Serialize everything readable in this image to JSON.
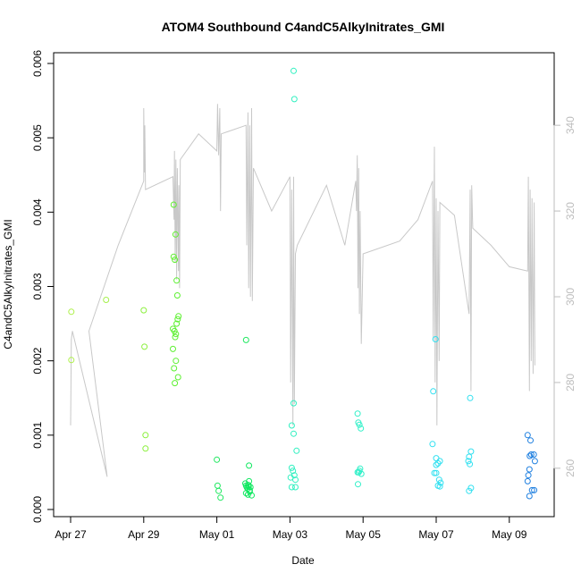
{
  "chart_data": {
    "type": "scatter",
    "title": "ATOM4 Southbound C4andC5AlkyInitrates_GMI",
    "xlabel": "Date",
    "ylabel": "C4andC5AlkyInitrates_GMI",
    "x_range_days": [
      -0.5,
      13.5
    ],
    "ylim": [
      0,
      0.006
    ],
    "y_ticks": [
      0,
      0.001,
      0.002,
      0.003,
      0.004,
      0.005,
      0.006
    ],
    "y_tick_labels": [
      "0.000",
      "0.001",
      "0.002",
      "0.003",
      "0.004",
      "0.005",
      "0.006"
    ],
    "x_ticks": [
      {
        "day": 0,
        "label": "Apr 27"
      },
      {
        "day": 2,
        "label": "Apr 29"
      },
      {
        "day": 4,
        "label": "May 01"
      },
      {
        "day": 6,
        "label": "May 03"
      },
      {
        "day": 8,
        "label": "May 05"
      },
      {
        "day": 10,
        "label": "May 07"
      },
      {
        "day": 12,
        "label": "May 09"
      }
    ],
    "y2lim": [
      251,
      349
    ],
    "y2_ticks": [
      260,
      280,
      300,
      320,
      340
    ],
    "grid": false,
    "points": [
      {
        "day": 0.02,
        "y": 0.00266,
        "color": "#aef04a"
      },
      {
        "day": 0.02,
        "y": 0.00201,
        "color": "#aef04a"
      },
      {
        "day": 0.97,
        "y": 0.00282,
        "color": "#a6f04c"
      },
      {
        "day": 2.0,
        "y": 0.00268,
        "color": "#8cf03e"
      },
      {
        "day": 2.02,
        "y": 0.00219,
        "color": "#8cf03e"
      },
      {
        "day": 2.05,
        "y": 0.001,
        "color": "#88f038"
      },
      {
        "day": 2.05,
        "y": 0.00082,
        "color": "#88f038"
      },
      {
        "day": 2.82,
        "y": 0.0041,
        "color": "#60f030"
      },
      {
        "day": 2.87,
        "y": 0.0037,
        "color": "#60f030"
      },
      {
        "day": 2.82,
        "y": 0.0034,
        "color": "#60f030"
      },
      {
        "day": 2.85,
        "y": 0.00336,
        "color": "#60f030"
      },
      {
        "day": 2.9,
        "y": 0.00308,
        "color": "#5cf030"
      },
      {
        "day": 2.92,
        "y": 0.00288,
        "color": "#5cf030"
      },
      {
        "day": 2.95,
        "y": 0.0026,
        "color": "#5cf030"
      },
      {
        "day": 2.93,
        "y": 0.00256,
        "color": "#5cf030"
      },
      {
        "day": 2.9,
        "y": 0.0025,
        "color": "#5cf030"
      },
      {
        "day": 2.8,
        "y": 0.00243,
        "color": "#5cf030"
      },
      {
        "day": 2.84,
        "y": 0.0024,
        "color": "#5cf030"
      },
      {
        "day": 2.88,
        "y": 0.00236,
        "color": "#5cf030"
      },
      {
        "day": 2.86,
        "y": 0.00232,
        "color": "#5cf030"
      },
      {
        "day": 2.8,
        "y": 0.00216,
        "color": "#5cf030"
      },
      {
        "day": 2.88,
        "y": 0.002,
        "color": "#5cf030"
      },
      {
        "day": 2.83,
        "y": 0.0019,
        "color": "#5cf030"
      },
      {
        "day": 2.94,
        "y": 0.00178,
        "color": "#5cf030"
      },
      {
        "day": 2.85,
        "y": 0.0017,
        "color": "#5cf030"
      },
      {
        "day": 4.0,
        "y": 0.00067,
        "color": "#20e860"
      },
      {
        "day": 4.02,
        "y": 0.00032,
        "color": "#20e860"
      },
      {
        "day": 4.05,
        "y": 0.00025,
        "color": "#20e860"
      },
      {
        "day": 4.1,
        "y": 0.00016,
        "color": "#20e860"
      },
      {
        "day": 4.8,
        "y": 0.00228,
        "color": "#20e860"
      },
      {
        "day": 4.88,
        "y": 0.00059,
        "color": "#10e860"
      },
      {
        "day": 4.78,
        "y": 0.00035,
        "color": "#10e860"
      },
      {
        "day": 4.8,
        "y": 0.00032,
        "color": "#10e860"
      },
      {
        "day": 4.82,
        "y": 0.0003,
        "color": "#10e860"
      },
      {
        "day": 4.84,
        "y": 0.00028,
        "color": "#10e860"
      },
      {
        "day": 4.86,
        "y": 0.00033,
        "color": "#10e860"
      },
      {
        "day": 4.88,
        "y": 0.00038,
        "color": "#10e860"
      },
      {
        "day": 4.9,
        "y": 0.00026,
        "color": "#10e860"
      },
      {
        "day": 4.92,
        "y": 0.0003,
        "color": "#10e860"
      },
      {
        "day": 4.8,
        "y": 0.00022,
        "color": "#10e860"
      },
      {
        "day": 4.85,
        "y": 0.0002,
        "color": "#10e860"
      },
      {
        "day": 4.95,
        "y": 0.00019,
        "color": "#10e860"
      },
      {
        "day": 4.9,
        "y": 0.00024,
        "color": "#10e860"
      },
      {
        "day": 4.87,
        "y": 0.00031,
        "color": "#10e860"
      },
      {
        "day": 6.1,
        "y": 0.0059,
        "color": "#30f0c0"
      },
      {
        "day": 6.12,
        "y": 0.00552,
        "color": "#30f0c0"
      },
      {
        "day": 6.1,
        "y": 0.00143,
        "color": "#30f0c0"
      },
      {
        "day": 6.05,
        "y": 0.00113,
        "color": "#30f0c0"
      },
      {
        "day": 6.1,
        "y": 0.00102,
        "color": "#30f0c0"
      },
      {
        "day": 6.18,
        "y": 0.00079,
        "color": "#30f0c0"
      },
      {
        "day": 6.05,
        "y": 0.00056,
        "color": "#30f0c0"
      },
      {
        "day": 6.08,
        "y": 0.00052,
        "color": "#30f0c0"
      },
      {
        "day": 6.12,
        "y": 0.00046,
        "color": "#30f0c0"
      },
      {
        "day": 6.02,
        "y": 0.00043,
        "color": "#30f0c0"
      },
      {
        "day": 6.15,
        "y": 0.0004,
        "color": "#30f0c0"
      },
      {
        "day": 6.05,
        "y": 0.0003,
        "color": "#30f0c0"
      },
      {
        "day": 6.15,
        "y": 0.0003,
        "color": "#30f0c0"
      },
      {
        "day": 7.85,
        "y": 0.00129,
        "color": "#30f0c8"
      },
      {
        "day": 7.87,
        "y": 0.00117,
        "color": "#30f0c8"
      },
      {
        "day": 7.9,
        "y": 0.00114,
        "color": "#30f0c8"
      },
      {
        "day": 7.94,
        "y": 0.00109,
        "color": "#30f0c8"
      },
      {
        "day": 7.92,
        "y": 0.00055,
        "color": "#30f0c8"
      },
      {
        "day": 7.85,
        "y": 0.0005,
        "color": "#30f0c8"
      },
      {
        "day": 7.88,
        "y": 0.0005,
        "color": "#30f0c8"
      },
      {
        "day": 7.95,
        "y": 0.00048,
        "color": "#30f0c8"
      },
      {
        "day": 7.9,
        "y": 0.00052,
        "color": "#30f0c8"
      },
      {
        "day": 7.86,
        "y": 0.00034,
        "color": "#30f0c8"
      },
      {
        "day": 9.98,
        "y": 0.00229,
        "color": "#30e0f0"
      },
      {
        "day": 9.92,
        "y": 0.00159,
        "color": "#30e0f0"
      },
      {
        "day": 9.9,
        "y": 0.00088,
        "color": "#30e0f0"
      },
      {
        "day": 10.0,
        "y": 0.00069,
        "color": "#30e0f0"
      },
      {
        "day": 10.05,
        "y": 0.00062,
        "color": "#30e0f0"
      },
      {
        "day": 10.1,
        "y": 0.00065,
        "color": "#30e0f0"
      },
      {
        "day": 10.0,
        "y": 0.0006,
        "color": "#30e0f0"
      },
      {
        "day": 9.95,
        "y": 0.00049,
        "color": "#30e0f0"
      },
      {
        "day": 10.08,
        "y": 0.0004,
        "color": "#30e0f0"
      },
      {
        "day": 10.12,
        "y": 0.00036,
        "color": "#30e0f0"
      },
      {
        "day": 10.05,
        "y": 0.00032,
        "color": "#30e0f0"
      },
      {
        "day": 10.1,
        "y": 0.00031,
        "color": "#30e0f0"
      },
      {
        "day": 10.0,
        "y": 0.00049,
        "color": "#30e0f0"
      },
      {
        "day": 10.93,
        "y": 0.0015,
        "color": "#30e0f0"
      },
      {
        "day": 10.95,
        "y": 0.00078,
        "color": "#30e0f0"
      },
      {
        "day": 10.9,
        "y": 0.00071,
        "color": "#30e0f0"
      },
      {
        "day": 10.88,
        "y": 0.00065,
        "color": "#30e0f0"
      },
      {
        "day": 10.92,
        "y": 0.00061,
        "color": "#30e0f0"
      },
      {
        "day": 10.95,
        "y": 0.00029,
        "color": "#30e0f0"
      },
      {
        "day": 10.9,
        "y": 0.00025,
        "color": "#30e0f0"
      },
      {
        "day": 12.5,
        "y": 0.001,
        "color": "#2080e0"
      },
      {
        "day": 12.58,
        "y": 0.00093,
        "color": "#2080e0"
      },
      {
        "day": 12.6,
        "y": 0.00074,
        "color": "#2080e0"
      },
      {
        "day": 12.67,
        "y": 0.00074,
        "color": "#2080e0"
      },
      {
        "day": 12.56,
        "y": 0.00072,
        "color": "#2080e0"
      },
      {
        "day": 12.7,
        "y": 0.00065,
        "color": "#2080e0"
      },
      {
        "day": 12.55,
        "y": 0.00054,
        "color": "#2080e0"
      },
      {
        "day": 12.52,
        "y": 0.00046,
        "color": "#2080e0"
      },
      {
        "day": 12.5,
        "y": 0.00038,
        "color": "#2080e0"
      },
      {
        "day": 12.62,
        "y": 0.00026,
        "color": "#2080e0"
      },
      {
        "day": 12.68,
        "y": 0.00026,
        "color": "#2080e0"
      },
      {
        "day": 12.55,
        "y": 0.00018,
        "color": "#2080e0"
      }
    ],
    "line_series": {
      "color": "#c8c8c8",
      "points": [
        [
          0.0,
          270
        ],
        [
          0.02,
          290
        ],
        [
          0.05,
          292
        ],
        [
          1.0,
          258
        ],
        [
          0.5,
          292
        ],
        [
          1.3,
          312
        ],
        [
          2.0,
          327
        ],
        [
          2.0,
          344
        ],
        [
          2.02,
          329
        ],
        [
          2.03,
          340
        ],
        [
          2.05,
          325
        ],
        [
          2.8,
          328
        ],
        [
          2.83,
          318
        ],
        [
          2.84,
          334
        ],
        [
          2.86,
          308
        ],
        [
          2.88,
          332
        ],
        [
          2.9,
          304
        ],
        [
          2.92,
          330
        ],
        [
          2.95,
          306
        ],
        [
          2.96,
          326
        ],
        [
          2.98,
          302
        ],
        [
          3.0,
          332
        ],
        [
          3.5,
          338
        ],
        [
          4.0,
          334
        ],
        [
          4.02,
          345
        ],
        [
          4.05,
          333
        ],
        [
          4.08,
          344
        ],
        [
          4.1,
          320
        ],
        [
          4.12,
          338
        ],
        [
          4.8,
          340
        ],
        [
          4.82,
          312
        ],
        [
          4.85,
          343
        ],
        [
          4.87,
          302
        ],
        [
          4.9,
          340
        ],
        [
          4.92,
          300
        ],
        [
          4.95,
          344
        ],
        [
          4.97,
          299
        ],
        [
          5.0,
          330
        ],
        [
          5.5,
          320
        ],
        [
          6.0,
          328
        ],
        [
          6.02,
          280
        ],
        [
          6.05,
          325
        ],
        [
          6.08,
          270
        ],
        [
          6.1,
          328
        ],
        [
          6.12,
          275
        ],
        [
          6.15,
          310
        ],
        [
          6.2,
          312
        ],
        [
          7.0,
          326
        ],
        [
          7.5,
          312
        ],
        [
          7.8,
          327
        ],
        [
          7.82,
          320
        ],
        [
          7.84,
          333
        ],
        [
          7.86,
          302
        ],
        [
          7.88,
          330
        ],
        [
          7.9,
          296
        ],
        [
          7.92,
          320
        ],
        [
          7.95,
          289
        ],
        [
          8.0,
          310
        ],
        [
          9.0,
          313
        ],
        [
          9.5,
          318
        ],
        [
          9.9,
          327
        ],
        [
          9.92,
          290
        ],
        [
          9.95,
          335
        ],
        [
          9.97,
          280
        ],
        [
          10.0,
          323
        ],
        [
          10.02,
          270
        ],
        [
          10.05,
          320
        ],
        [
          10.08,
          285
        ],
        [
          10.1,
          322
        ],
        [
          10.5,
          319
        ],
        [
          10.9,
          296
        ],
        [
          10.93,
          325
        ],
        [
          10.95,
          278
        ],
        [
          10.97,
          326
        ],
        [
          11.0,
          316
        ],
        [
          11.5,
          312
        ],
        [
          12.0,
          307
        ],
        [
          12.5,
          306
        ],
        [
          12.52,
          328
        ],
        [
          12.55,
          278
        ],
        [
          12.57,
          325
        ],
        [
          12.6,
          285
        ],
        [
          12.62,
          323
        ],
        [
          12.65,
          282
        ],
        [
          12.68,
          322
        ],
        [
          12.7,
          284
        ]
      ]
    }
  }
}
